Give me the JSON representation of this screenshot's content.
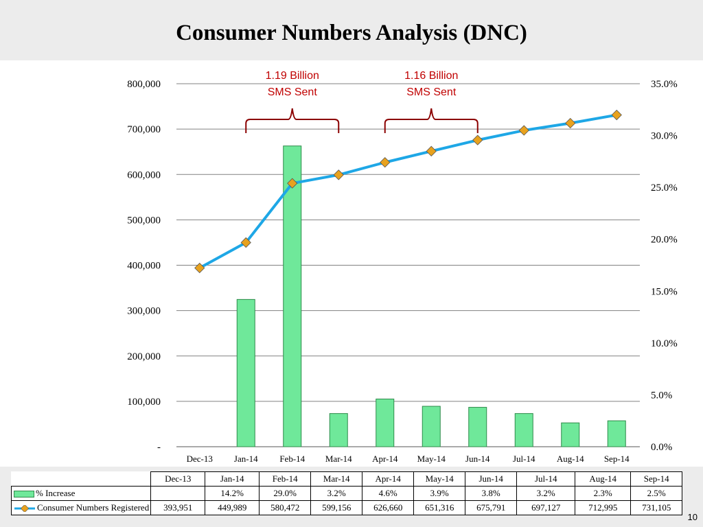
{
  "slide": {
    "title": "Consumer Numbers Analysis (DNC)",
    "page_number": "10"
  },
  "annotations": [
    {
      "line1": "1.19 Billion",
      "line2": "SMS Sent",
      "from": "Jan-14",
      "to": "Mar-14"
    },
    {
      "line1": "1.16 Billion",
      "line2": "SMS Sent",
      "from": "Apr-14",
      "to": "Jun-14"
    }
  ],
  "chart_data": {
    "type": "bar",
    "categories": [
      "Dec-13",
      "Jan-14",
      "Feb-14",
      "Mar-14",
      "Apr-14",
      "May-14",
      "Jun-14",
      "Jul-14",
      "Aug-14",
      "Sep-14"
    ],
    "series": [
      {
        "name": "% Increase",
        "type": "bar",
        "axis": "right",
        "values": [
          null,
          14.2,
          29.0,
          3.2,
          4.6,
          3.9,
          3.8,
          3.2,
          2.3,
          2.5
        ],
        "labels": [
          "",
          "14.2%",
          "29.0%",
          "3.2%",
          "4.6%",
          "3.9%",
          "3.8%",
          "3.2%",
          "2.3%",
          "2.5%"
        ]
      },
      {
        "name": "Consumer Numbers Registered",
        "type": "line",
        "axis": "left",
        "values": [
          393951,
          449989,
          580472,
          599156,
          626660,
          651316,
          675791,
          697127,
          712995,
          731105
        ],
        "labels": [
          "393,951",
          "449,989",
          "580,472",
          "599,156",
          "626,660",
          "651,316",
          "675,791",
          "697,127",
          "712,995",
          "731,105"
        ]
      }
    ],
    "y_left": {
      "ylim": [
        0,
        800000
      ],
      "ticks": [
        0,
        100000,
        200000,
        300000,
        400000,
        500000,
        600000,
        700000,
        800000
      ],
      "tick_labels": [
        "-",
        "100,000",
        "200,000",
        "300,000",
        "400,000",
        "500,000",
        "600,000",
        "700,000",
        "800,000"
      ]
    },
    "y_right": {
      "ylim": [
        0,
        35
      ],
      "ticks": [
        0,
        5,
        10,
        15,
        20,
        25,
        30,
        35
      ],
      "tick_labels": [
        "0.0%",
        "5.0%",
        "10.0%",
        "15.0%",
        "20.0%",
        "25.0%",
        "30.0%",
        "35.0%"
      ]
    },
    "grid": true,
    "legend": "data-table",
    "colors": {
      "bar_fill": "#6fe89a",
      "bar_stroke": "#2f8a4a",
      "line": "#1ea7e6",
      "marker": "#e8a21e",
      "annotation": "#c00000",
      "grid": "#808080"
    }
  }
}
